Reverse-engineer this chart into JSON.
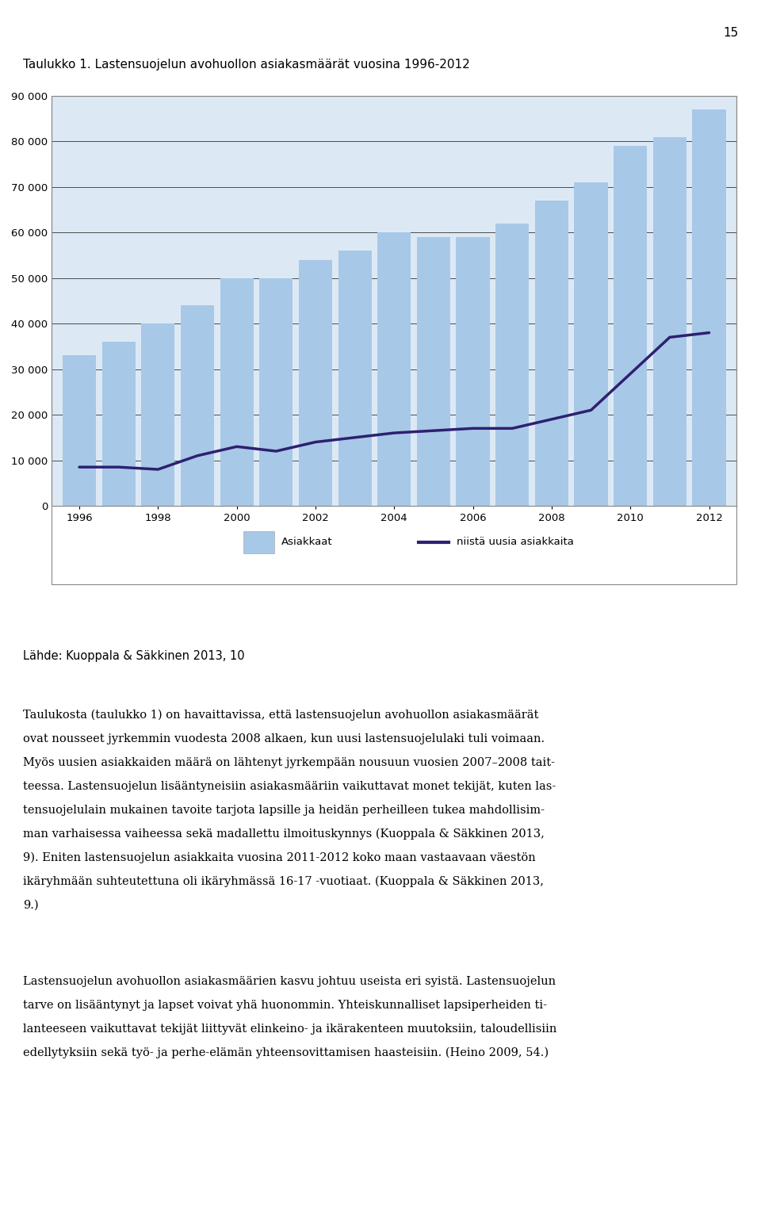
{
  "title": "Taulukko 1. Lastensuojelun avohuollon asiakasmäärät vuosina 1996-2012",
  "years": [
    1996,
    1997,
    1998,
    1999,
    2000,
    2001,
    2002,
    2003,
    2004,
    2005,
    2006,
    2007,
    2008,
    2009,
    2010,
    2011,
    2012
  ],
  "bar_values": [
    33000,
    36000,
    40000,
    44000,
    50000,
    50000,
    54000,
    56000,
    60000,
    59000,
    59000,
    62000,
    67000,
    71000,
    79000,
    81000,
    87000
  ],
  "line_values": [
    8500,
    8500,
    8000,
    11000,
    13000,
    12000,
    14000,
    15000,
    16000,
    16500,
    17000,
    17000,
    19000,
    21000,
    29000,
    37000,
    38000
  ],
  "bar_color": "#a8c8e8",
  "line_color": "#2e2070",
  "bar_label": "Asiakkaat",
  "line_label": "niistä uusia asiakkaita",
  "ylim": [
    0,
    90000
  ],
  "yticks": [
    0,
    10000,
    20000,
    30000,
    40000,
    50000,
    60000,
    70000,
    80000,
    90000
  ],
  "ytick_labels": [
    "0",
    "10 000",
    "20 000",
    "30 000",
    "40 000",
    "50 000",
    "60 000",
    "70 000",
    "80 000",
    "90 000"
  ],
  "xtick_labels": [
    "1996",
    "1998",
    "2000",
    "2002",
    "2004",
    "2006",
    "2008",
    "2010",
    "2012"
  ],
  "source_text": "Lähde: Kuoppala & Säkkinen 2013, 10",
  "page_number": "15",
  "body_text": [
    "Taulukosta (taulukko 1) on havaittavissa, että lastensuojelun avohuollon asiakasmäärät",
    "ovat nousseet jyrkemmin vuodesta 2008 alkaen, kun uusi lastensuojelulaki tuli voimaan.",
    "Myös uusien asiakkaiden määrä on lähtenyt jyrkempään nousuun vuosien 2007–2008 tait-",
    "teessa. Lastensuojelun lisääntyneisiin asiakasmääriin vaikuttavat monet tekijät, kuten las-",
    "tensuojelulain mukainen tavoite tarjota lapsille ja heidän perheilleen tukea mahdollisim-",
    "man varhaisessa vaiheessa sekä madallettu ilmoituskynnys (Kuoppala & Säkkinen 2013,",
    "9). Eniten lastensuojelun asiakkaita vuosina 2011-2012 koko maan vastaavaan väestön",
    "ikäryhmään suhteutettuna oli ikäryhmässä 16-17 -vuotiaat. (Kuoppala & Säkkinen 2013,",
    "9.)"
  ],
  "body_text2": [
    "Lastensuojelun avohuollon asiakasmäärien kasvu johtuu useista eri syistä. Lastensuojelun",
    "tarve on lisääntynyt ja lapset voivat yhä huonommin. Yhteiskunnalliset lapsiperheiden ti-",
    "lanteeseen vaikuttavat tekijät liittyvät elinkeino- ja ikärakenteen muutoksiin, taloudellisiin",
    "edellytyksiin sekä työ- ja perhe-elämän yhteensovittamisen haasteisiin. (Heino 2009, 54.)"
  ],
  "background_color": "#ffffff",
  "chart_bg_color": "#dce9f5",
  "grid_color": "#333333",
  "border_color": "#888888"
}
